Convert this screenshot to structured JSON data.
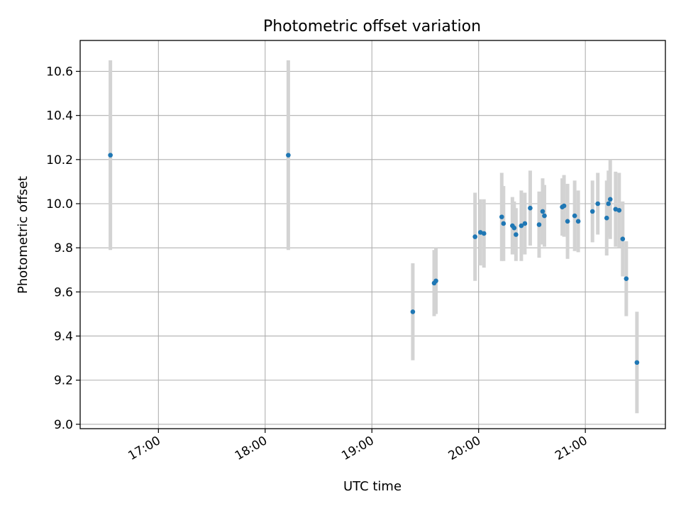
{
  "chart_data": {
    "type": "scatter",
    "title": "Photometric offset variation",
    "xlabel": "UTC time",
    "ylabel": "Photometric offset",
    "x_unit": "UTC time (HH:MM)",
    "xlim": [
      "16:16",
      "21:45"
    ],
    "ylim": [
      8.98,
      10.74
    ],
    "xticks": [
      "17:00",
      "18:00",
      "19:00",
      "20:00",
      "21:00"
    ],
    "yticks": [
      "9.0",
      "9.2",
      "9.4",
      "9.6",
      "9.8",
      "10.0",
      "10.2",
      "10.4",
      "10.6"
    ],
    "grid": true,
    "marker_color": "#1f77b4",
    "errorbar_color": "#d3d3d3",
    "points": [
      {
        "x": "16:33",
        "y": 10.22,
        "err": 0.43
      },
      {
        "x": "18:13",
        "y": 10.22,
        "err": 0.43
      },
      {
        "x": "19:23",
        "y": 9.51,
        "err": 0.22
      },
      {
        "x": "19:35",
        "y": 9.64,
        "err": 0.15
      },
      {
        "x": "19:36",
        "y": 9.65,
        "err": 0.15
      },
      {
        "x": "19:58",
        "y": 9.85,
        "err": 0.2
      },
      {
        "x": "20:01",
        "y": 9.87,
        "err": 0.15
      },
      {
        "x": "20:03",
        "y": 9.865,
        "err": 0.155
      },
      {
        "x": "20:13",
        "y": 9.94,
        "err": 0.2
      },
      {
        "x": "20:14",
        "y": 9.91,
        "err": 0.17
      },
      {
        "x": "20:19",
        "y": 9.9,
        "err": 0.13
      },
      {
        "x": "20:20",
        "y": 9.89,
        "err": 0.12
      },
      {
        "x": "20:21",
        "y": 9.86,
        "err": 0.12
      },
      {
        "x": "20:24",
        "y": 9.9,
        "err": 0.16
      },
      {
        "x": "20:26",
        "y": 9.91,
        "err": 0.14
      },
      {
        "x": "20:29",
        "y": 9.98,
        "err": 0.17
      },
      {
        "x": "20:34",
        "y": 9.905,
        "err": 0.15
      },
      {
        "x": "20:36",
        "y": 9.965,
        "err": 0.15
      },
      {
        "x": "20:37",
        "y": 9.945,
        "err": 0.14
      },
      {
        "x": "20:47",
        "y": 9.985,
        "err": 0.13
      },
      {
        "x": "20:48",
        "y": 9.99,
        "err": 0.14
      },
      {
        "x": "20:50",
        "y": 9.92,
        "err": 0.17
      },
      {
        "x": "20:54",
        "y": 9.945,
        "err": 0.16
      },
      {
        "x": "20:56",
        "y": 9.92,
        "err": 0.14
      },
      {
        "x": "21:04",
        "y": 9.965,
        "err": 0.14
      },
      {
        "x": "21:07",
        "y": 10.0,
        "err": 0.14
      },
      {
        "x": "21:12",
        "y": 9.935,
        "err": 0.17
      },
      {
        "x": "21:13",
        "y": 10.0,
        "err": 0.15
      },
      {
        "x": "21:14",
        "y": 10.02,
        "err": 0.18
      },
      {
        "x": "21:17",
        "y": 9.975,
        "err": 0.17
      },
      {
        "x": "21:19",
        "y": 9.97,
        "err": 0.17
      },
      {
        "x": "21:21",
        "y": 9.84,
        "err": 0.17
      },
      {
        "x": "21:23",
        "y": 9.66,
        "err": 0.17
      },
      {
        "x": "21:29",
        "y": 9.28,
        "err": 0.23
      }
    ]
  }
}
